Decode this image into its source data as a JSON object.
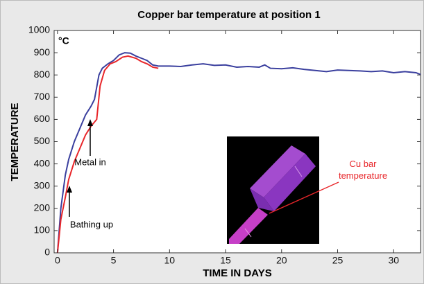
{
  "chart_data": {
    "type": "line",
    "title": "Copper bar temperature at position 1",
    "x_label": "TIME IN DAYS",
    "y_label": "TEMPERATURE",
    "unit": "°C",
    "annotations": [
      "Metal in",
      "Bathing up",
      "Cu bar temperature"
    ],
    "xlim": [
      -0.3,
      32.4
    ],
    "ylim": [
      0,
      1000
    ],
    "xticks": [
      0,
      5,
      10,
      15,
      20,
      25,
      30
    ],
    "yticks": [
      0,
      100,
      200,
      300,
      400,
      500,
      600,
      700,
      800,
      900,
      1000
    ],
    "series": [
      {
        "color": "#3a3f9e",
        "x": [
          0,
          0.3,
          0.7,
          1,
          1.5,
          2,
          2.5,
          3,
          3.3,
          3.7,
          4,
          4.5,
          5,
          5.5,
          6,
          6.5,
          7,
          7.5,
          8,
          8.5,
          9,
          10,
          11,
          12,
          13,
          14,
          15,
          16,
          17,
          18,
          18.5,
          19,
          20,
          21,
          22,
          23,
          24,
          25,
          26,
          27,
          28,
          29,
          30,
          31,
          32,
          32.4
        ],
        "values": [
          0,
          200,
          350,
          420,
          500,
          560,
          620,
          660,
          690,
          800,
          830,
          850,
          865,
          890,
          900,
          898,
          885,
          875,
          865,
          845,
          840,
          840,
          838,
          845,
          850,
          843,
          845,
          835,
          838,
          835,
          845,
          830,
          828,
          832,
          825,
          820,
          815,
          822,
          820,
          818,
          815,
          818,
          810,
          815,
          810,
          802
        ]
      },
      {
        "color": "#e8262a",
        "x": [
          0,
          0.3,
          0.7,
          1,
          1.5,
          2,
          2.5,
          3,
          3.5,
          3.8,
          4.2,
          4.7,
          5.2,
          5.8,
          6.3,
          7,
          7.5,
          8,
          8.5,
          9
        ],
        "values": [
          0,
          150,
          250,
          330,
          410,
          470,
          530,
          570,
          600,
          750,
          820,
          850,
          860,
          880,
          885,
          875,
          860,
          850,
          835,
          830
        ]
      }
    ]
  }
}
